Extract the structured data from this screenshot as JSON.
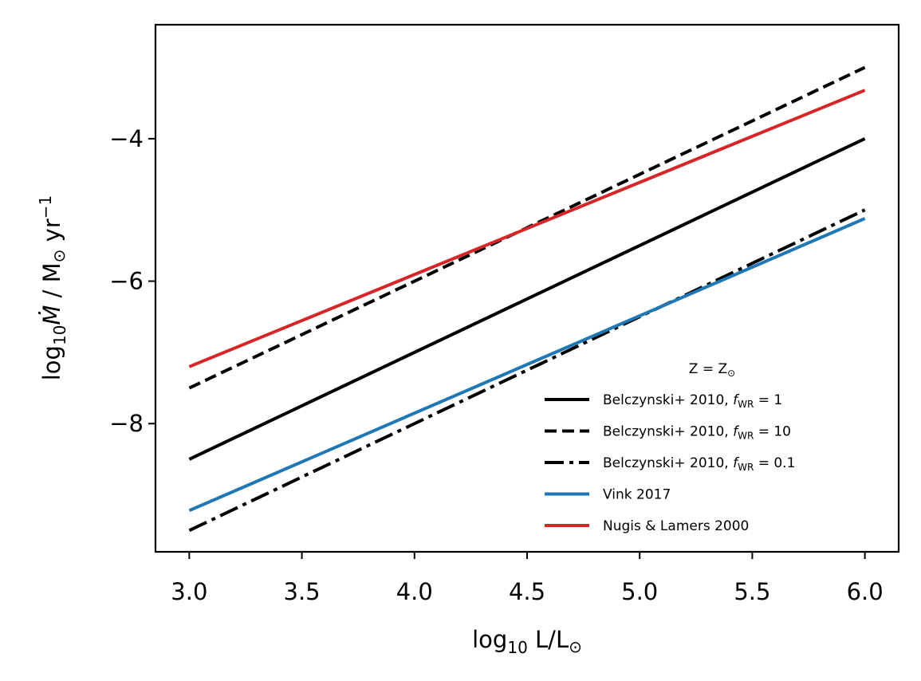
{
  "chart_data": {
    "type": "line",
    "title": "",
    "xlabel": {
      "pre": "log",
      "sub": "10",
      "post": " L/L",
      "sun": "⊙"
    },
    "ylabel": {
      "pre": "log",
      "sub": "10",
      "mdot": "Ṁ",
      "mid": " / M",
      "sun": "⊙",
      "unit": " yr",
      "sup": "−1"
    },
    "xlim": [
      2.85,
      6.15
    ],
    "ylim": [
      -9.8,
      -2.4
    ],
    "xticks": [
      {
        "value": 3.0,
        "label": "3.0"
      },
      {
        "value": 3.5,
        "label": "3.5"
      },
      {
        "value": 4.0,
        "label": "4.0"
      },
      {
        "value": 4.5,
        "label": "4.5"
      },
      {
        "value": 5.0,
        "label": "5.0"
      },
      {
        "value": 5.5,
        "label": "5.5"
      },
      {
        "value": 6.0,
        "label": "6.0"
      }
    ],
    "yticks": [
      {
        "value": -4,
        "label": "−4"
      },
      {
        "value": -6,
        "label": "−6"
      },
      {
        "value": -8,
        "label": "−8"
      }
    ],
    "grid": false,
    "legend": {
      "placement": "bottom-right",
      "title": "Z = Z",
      "title_sun": "⊙"
    },
    "series": [
      {
        "name": "Belczynski+ 2010, ",
        "f_label": "f",
        "f_sub": "WR",
        "f_value": " = 1",
        "color": "#000000",
        "style": "solid",
        "x": [
          3.0,
          6.0
        ],
        "y": [
          -8.5,
          -4.0
        ]
      },
      {
        "name": "Belczynski+ 2010, ",
        "f_label": "f",
        "f_sub": "WR",
        "f_value": " = 10",
        "color": "#000000",
        "style": "dashed",
        "x": [
          3.0,
          6.0
        ],
        "y": [
          -7.5,
          -3.0
        ]
      },
      {
        "name": "Belczynski+ 2010, ",
        "f_label": "f",
        "f_sub": "WR",
        "f_value": " = 0.1",
        "color": "#000000",
        "style": "dashdot",
        "x": [
          3.0,
          6.0
        ],
        "y": [
          -9.5,
          -5.0
        ]
      },
      {
        "name": "Vink 2017",
        "color": "#1f77b4",
        "style": "solid",
        "x": [
          3.0,
          6.0
        ],
        "y": [
          -9.22,
          -5.12
        ]
      },
      {
        "name": "Nugis & Lamers 2000",
        "color": "#d62728",
        "style": "solid",
        "x": [
          3.0,
          6.0
        ],
        "y": [
          -7.2,
          -3.32
        ]
      }
    ]
  }
}
